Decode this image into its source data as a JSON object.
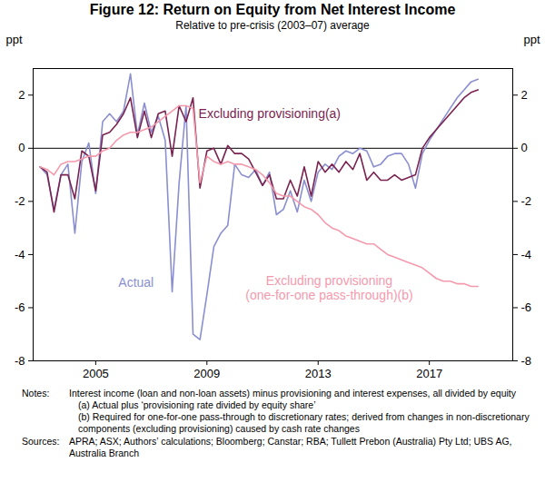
{
  "chart_data": {
    "type": "line",
    "title": "Figure 12: Return on Equity from Net Interest Income",
    "subtitle": "Relative to pre-crisis (2003–07) average",
    "y_label": "ppt",
    "y2_label": "ppt",
    "x": [
      2003,
      2003.25,
      2003.5,
      2003.75,
      2004,
      2004.25,
      2004.5,
      2004.75,
      2005,
      2005.25,
      2005.5,
      2005.75,
      2006,
      2006.25,
      2006.5,
      2006.75,
      2007,
      2007.25,
      2007.5,
      2007.75,
      2008,
      2008.25,
      2008.5,
      2008.75,
      2009,
      2009.25,
      2009.5,
      2009.75,
      2010,
      2010.25,
      2010.5,
      2010.75,
      2011,
      2011.25,
      2011.5,
      2011.75,
      2012,
      2012.25,
      2012.5,
      2012.75,
      2013,
      2013.25,
      2013.5,
      2013.75,
      2014,
      2014.25,
      2014.5,
      2014.75,
      2015,
      2015.25,
      2015.5,
      2015.75,
      2016,
      2016.25,
      2016.5,
      2016.75,
      2017,
      2017.25,
      2017.5,
      2017.75,
      2018,
      2018.25,
      2018.5,
      2018.75
    ],
    "series": [
      {
        "name": "Actual",
        "color": "#8b8fd0",
        "values": [
          -0.7,
          -1.0,
          -2.3,
          -1.0,
          -0.6,
          -3.2,
          -0.5,
          0.2,
          -1.7,
          1.0,
          1.3,
          1.0,
          1.4,
          2.8,
          0.5,
          1.7,
          0.6,
          1.2,
          0.3,
          -5.4,
          -1.3,
          1.6,
          -7.0,
          -7.2,
          -5.5,
          -3.7,
          -3.2,
          -2.9,
          -0.6,
          -1.0,
          -1.1,
          -0.8,
          -1.4,
          -0.9,
          -2.5,
          -2.3,
          -1.6,
          -2.4,
          -1.2,
          -2.0,
          -0.9,
          -0.6,
          -0.8,
          -0.3,
          -0.1,
          -0.2,
          0.0,
          -0.1,
          -0.7,
          -0.6,
          -0.3,
          -0.2,
          -0.2,
          -0.6,
          -1.5,
          -0.2,
          0.3,
          0.7,
          1.1,
          1.5,
          1.9,
          2.2,
          2.5,
          2.6
        ]
      },
      {
        "name": "Excluding provisioning(a)",
        "color": "#7a2350",
        "values": [
          -0.7,
          -0.9,
          -2.4,
          -1.0,
          -1.0,
          -1.9,
          -0.1,
          -0.3,
          -1.6,
          0.5,
          0.6,
          0.9,
          1.3,
          1.9,
          0.4,
          1.4,
          0.4,
          1.3,
          1.4,
          -0.3,
          1.6,
          1.0,
          1.9,
          -1.5,
          -0.1,
          0.0,
          -0.6,
          0.1,
          -0.2,
          -0.2,
          -0.4,
          -0.9,
          -1.4,
          -1.0,
          -1.9,
          -1.9,
          -1.2,
          -1.8,
          -0.7,
          -1.8,
          -0.5,
          -0.9,
          -0.6,
          -0.9,
          -0.5,
          -0.8,
          -0.2,
          -1.2,
          -0.9,
          -1.2,
          -1.2,
          -1.0,
          -1.2,
          -1.1,
          -1.0,
          0.0,
          0.4,
          0.7,
          1.0,
          1.3,
          1.6,
          1.9,
          2.1,
          2.2
        ]
      },
      {
        "name": "Excluding provisioning\n(one-for-one pass-through)(b)",
        "color": "#f49aad",
        "values": [
          -0.7,
          -0.8,
          -1.0,
          -0.6,
          -0.5,
          -0.5,
          -0.4,
          -0.3,
          -0.3,
          -0.1,
          0.0,
          0.3,
          0.5,
          0.6,
          0.6,
          0.7,
          0.8,
          1.0,
          1.2,
          1.4,
          1.6,
          1.6,
          1.5,
          -1.3,
          -0.3,
          -0.5,
          -0.6,
          -0.5,
          -0.6,
          -0.6,
          -0.7,
          -0.8,
          -1.0,
          -1.3,
          -1.7,
          -1.8,
          -1.8,
          -2.0,
          -2.2,
          -2.3,
          -2.5,
          -2.8,
          -3.0,
          -3.1,
          -3.3,
          -3.4,
          -3.5,
          -3.6,
          -3.6,
          -3.8,
          -4.0,
          -4.1,
          -4.2,
          -4.3,
          -4.4,
          -4.5,
          -4.7,
          -4.9,
          -5.0,
          -5.0,
          -5.1,
          -5.1,
          -5.2,
          -5.2
        ]
      }
    ],
    "xlim": [
      2002.75,
      2020
    ],
    "xticks": [
      2005,
      2009,
      2013,
      2017
    ],
    "ylim": [
      -8,
      3
    ],
    "yticks": [
      -8,
      -6,
      -4,
      -2,
      0,
      2
    ],
    "grid": false,
    "notes_label": "Notes:",
    "notes": [
      "Interest income (loan and non-loan assets) minus provisioning and interest expenses, all divided by equity",
      "(a) Actual plus ‘provisioning rate divided by equity share’",
      "(b) Required for one-for-one pass-through to discretionary rates; derived from changes in non-discretionary components (excluding provisioning) caused by cash rate changes"
    ],
    "sources_label": "Sources:",
    "sources": "APRA; ASX; Authors’ calculations; Bloomberg; Canstar; RBA; Tullett Prebon (Australia) Pty Ltd; UBS AG, Australia Branch"
  }
}
